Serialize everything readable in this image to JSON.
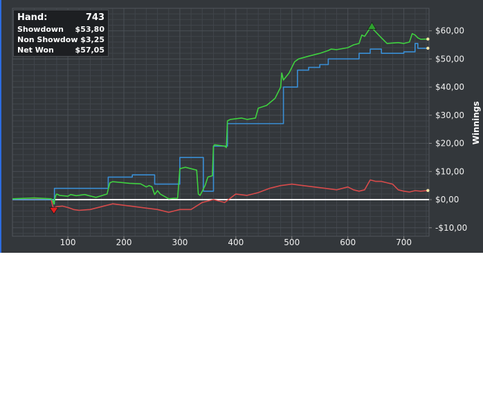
{
  "legend": {
    "rows": [
      {
        "label": "Hand:",
        "value": "743"
      },
      {
        "label": "Showdown",
        "value": "$53,80"
      },
      {
        "label": "Non Showdow",
        "value": "$3,25"
      },
      {
        "label": "Net Won",
        "value": "$57,05"
      }
    ]
  },
  "colors": {
    "net_won": "#3fd23f",
    "showdown": "#3a8fd6",
    "non_showdown": "#d94b4b",
    "zero_line": "#ffffff",
    "background": "#33373b",
    "grid": "#4a4f55"
  },
  "chart_data": {
    "type": "line",
    "ylabel": "Winnings",
    "xlabel": "",
    "xlim": [
      1,
      745
    ],
    "ylim": [
      -13,
      68
    ],
    "x_ticks": [
      100,
      200,
      300,
      400,
      500,
      600,
      700
    ],
    "x_tick_labels": [
      "100",
      "200",
      "300",
      "400",
      "500",
      "600",
      "700"
    ],
    "y_ticks": [
      -10,
      0,
      10,
      20,
      30,
      40,
      50,
      60
    ],
    "y_tick_labels": [
      "-$10,00",
      "$0,00",
      "$10,00",
      "$20,00",
      "$30,00",
      "$40,00",
      "$50,00",
      "$60,00"
    ],
    "grid": true,
    "legend_position": "top-left",
    "series": [
      {
        "name": "Net Won",
        "color_key": "net_won",
        "step": false,
        "x": [
          1,
          40,
          70,
          72,
          75,
          78,
          80,
          85,
          100,
          105,
          115,
          130,
          150,
          170,
          175,
          180,
          200,
          210,
          230,
          240,
          245,
          250,
          255,
          260,
          265,
          280,
          290,
          296,
          300,
          310,
          330,
          333,
          336,
          340,
          345,
          350,
          358,
          360,
          362,
          380,
          383,
          385,
          390,
          410,
          420,
          435,
          440,
          455,
          470,
          480,
          482,
          485,
          495,
          505,
          512,
          530,
          550,
          565,
          570,
          580,
          600,
          610,
          620,
          625,
          630,
          640,
          643,
          660,
          670,
          690,
          700,
          710,
          715,
          720,
          725,
          730,
          743
        ],
        "y": [
          0.3,
          0.6,
          0.3,
          0,
          -1.6,
          1.3,
          2,
          1.5,
          1.2,
          1.8,
          1.4,
          1.8,
          0.8,
          2,
          6,
          6.4,
          6,
          5.8,
          5.6,
          4.5,
          5,
          4.6,
          1.8,
          3.2,
          2,
          0.3,
          0.5,
          0.5,
          11,
          11.5,
          10.5,
          2,
          1.5,
          3,
          5,
          8,
          8.5,
          19,
          19.5,
          19,
          18.5,
          28,
          28.5,
          29,
          28.5,
          29,
          32.5,
          33.5,
          36,
          40,
          45,
          42.5,
          45,
          49,
          50,
          51,
          52,
          53,
          53.5,
          53.3,
          54,
          55,
          55.5,
          58.5,
          58,
          61,
          61,
          57.5,
          55.5,
          55.8,
          55.5,
          56,
          59,
          58.5,
          57.5,
          57,
          57.05
        ]
      },
      {
        "name": "Showdown",
        "color_key": "showdown",
        "step": true,
        "x": [
          1,
          72,
          74,
          75,
          76,
          140,
          172,
          215,
          255,
          298,
          300,
          340,
          342,
          355,
          360,
          370,
          380,
          385,
          405,
          470,
          480,
          485,
          500,
          510,
          515,
          530,
          550,
          565,
          600,
          620,
          640,
          660,
          700,
          720,
          725,
          743
        ],
        "y": [
          0,
          0,
          0,
          -1.5,
          4,
          4,
          8,
          8.8,
          5.5,
          5.5,
          15,
          15,
          3,
          3,
          19,
          19,
          19,
          27,
          27,
          27,
          27,
          40,
          40,
          46,
          46,
          47,
          48,
          50,
          50,
          52,
          53.5,
          52,
          52.5,
          55.5,
          53.8,
          53.8
        ]
      },
      {
        "name": "Non Showdown",
        "color_key": "non_showdown",
        "step": false,
        "x": [
          1,
          70,
          72,
          74,
          80,
          90,
          100,
          110,
          120,
          140,
          160,
          180,
          200,
          220,
          240,
          260,
          280,
          300,
          320,
          340,
          360,
          380,
          400,
          420,
          440,
          460,
          480,
          500,
          520,
          540,
          560,
          580,
          600,
          610,
          620,
          630,
          640,
          650,
          660,
          670,
          680,
          690,
          700,
          710,
          720,
          730,
          743
        ],
        "y": [
          0,
          0.2,
          -1.5,
          -3,
          -2.5,
          -2.3,
          -2.8,
          -3.5,
          -3.8,
          -3.5,
          -2.5,
          -1.5,
          -2,
          -2.5,
          -3,
          -3.5,
          -4.5,
          -3.5,
          -3.5,
          -1,
          0,
          -1,
          2,
          1.5,
          2.5,
          4,
          5,
          5.5,
          5,
          4.5,
          4,
          3.5,
          4.5,
          3.5,
          3,
          3.5,
          7,
          6.5,
          6.5,
          6,
          5.5,
          3.5,
          3,
          2.7,
          3.2,
          3,
          3.25
        ]
      }
    ],
    "markers": [
      {
        "type": "peak",
        "x": 643,
        "y": 61,
        "color": "#2fa02f"
      },
      {
        "type": "trough",
        "x": 75,
        "y": -1.6,
        "color": "#e02020"
      }
    ]
  }
}
